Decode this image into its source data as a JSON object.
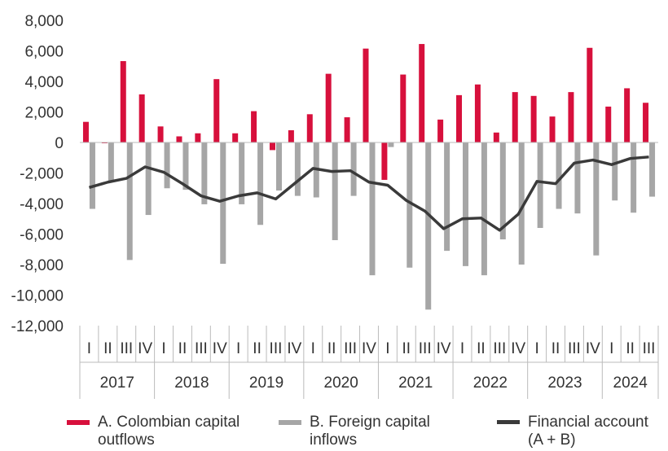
{
  "chart_data": {
    "type": "bar",
    "title": "",
    "xlabel": "",
    "ylabel": "",
    "ylim": [
      -12000,
      8000
    ],
    "yticks": [
      8000,
      6000,
      4000,
      2000,
      0,
      -2000,
      -4000,
      -6000,
      -8000,
      -10000,
      -12000
    ],
    "ytick_labels": [
      "8,000",
      "6,000",
      "4,000",
      "2,000",
      "0",
      "-2,000",
      "-4,000",
      "-6,000",
      "-8,000",
      "-10,000",
      "-12,000"
    ],
    "grid": false,
    "legend_position": "bottom",
    "years": [
      {
        "label": "2017",
        "quarters": [
          "I",
          "II",
          "III",
          "IV"
        ]
      },
      {
        "label": "2018",
        "quarters": [
          "I",
          "II",
          "III",
          "IV"
        ]
      },
      {
        "label": "2019",
        "quarters": [
          "I",
          "II",
          "III",
          "IV"
        ]
      },
      {
        "label": "2020",
        "quarters": [
          "I",
          "II",
          "III",
          "IV"
        ]
      },
      {
        "label": "2021",
        "quarters": [
          "I",
          "II",
          "III",
          "IV"
        ]
      },
      {
        "label": "2022",
        "quarters": [
          "I",
          "II",
          "III",
          "IV"
        ]
      },
      {
        "label": "2023",
        "quarters": [
          "I",
          "II",
          "III",
          "IV"
        ]
      },
      {
        "label": "2024",
        "quarters": [
          "I",
          "II",
          "III"
        ]
      }
    ],
    "series": [
      {
        "name": "A. Colombian capital outflows",
        "type": "bar",
        "color": "#d7103c",
        "values": [
          1350,
          -50,
          5330,
          3150,
          1050,
          400,
          600,
          4150,
          600,
          2050,
          -500,
          800,
          1850,
          4500,
          1650,
          6150,
          -2450,
          4450,
          6450,
          1500,
          3100,
          3800,
          650,
          3300,
          3050,
          1700,
          3300,
          6200,
          2350,
          3550,
          2600
        ]
      },
      {
        "name": "B. Foreign capital inflows",
        "type": "bar",
        "color": "#a6a6a6",
        "values": [
          -4350,
          -2500,
          -7700,
          -4750,
          -3000,
          -3100,
          -4050,
          -7950,
          -4050,
          -5400,
          -3150,
          -3500,
          -3600,
          -6400,
          -3500,
          -8700,
          -300,
          -8200,
          -10950,
          -7100,
          -8100,
          -8700,
          -6350,
          -8000,
          -5600,
          -4350,
          -4650,
          -7400,
          -3800,
          -4600,
          -3550
        ]
      },
      {
        "name": "Financial account (A + B)",
        "type": "line",
        "color": "#3a3a3a",
        "values": [
          -2950,
          -2600,
          -2350,
          -1600,
          -1950,
          -2700,
          -3500,
          -3850,
          -3500,
          -3300,
          -3700,
          -2700,
          -1700,
          -1900,
          -1850,
          -2600,
          -2800,
          -3800,
          -4500,
          -5650,
          -5000,
          -4950,
          -5750,
          -4700,
          -2550,
          -2700,
          -1350,
          -1150,
          -1450,
          -1050,
          -950
        ]
      }
    ]
  },
  "legend": [
    {
      "line1": "A. Colombian capital",
      "line2": "outflows"
    },
    {
      "line1": "B. Foreign capital",
      "line2": "inflows"
    },
    {
      "line1": "Financial account",
      "line2": "(A + B)"
    }
  ]
}
